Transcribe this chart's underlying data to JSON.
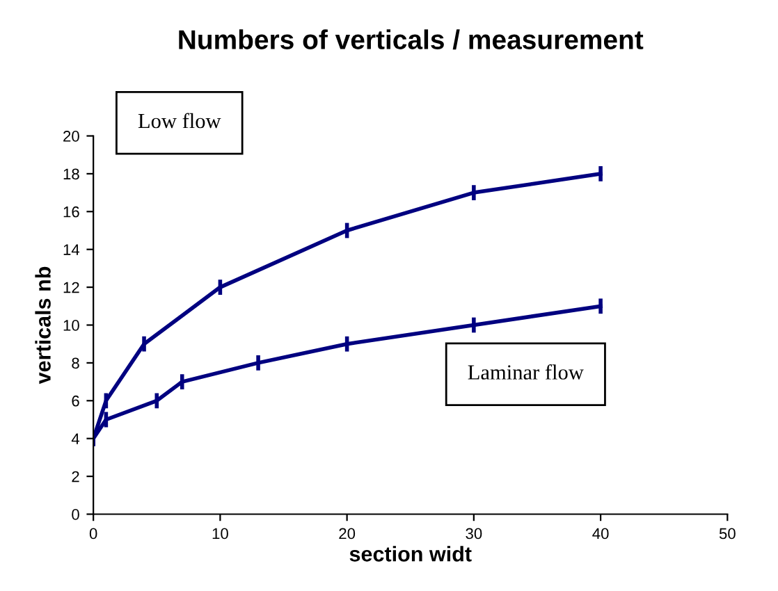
{
  "chart_data": {
    "type": "line",
    "title": "Numbers of verticals / measurement",
    "xlabel": "section widt",
    "ylabel": "verticals nb",
    "series": [
      {
        "color": "#000080",
        "x": [
          0,
          1,
          4,
          10,
          20,
          30,
          40
        ],
        "values": [
          4,
          6,
          9,
          12,
          15,
          17,
          18
        ],
        "errors": [
          0.4,
          0.4,
          0.4,
          0.4,
          0.4,
          0.4,
          0.4
        ]
      },
      {
        "color": "#000080",
        "x": [
          0,
          1,
          5,
          7,
          13,
          20,
          30,
          40
        ],
        "values": [
          4,
          5,
          6,
          7,
          8,
          9,
          10,
          11
        ],
        "errors": [
          0.4,
          0.4,
          0.4,
          0.4,
          0.4,
          0.4,
          0.4,
          0.4
        ]
      }
    ],
    "annotations": [
      "Low flow",
      "Laminar flow"
    ],
    "xlim": [
      0,
      50
    ],
    "xticks": [
      0,
      10,
      20,
      30,
      40,
      50
    ],
    "ylim": [
      0,
      20
    ],
    "yticks": [
      0,
      2,
      4,
      6,
      8,
      10,
      12,
      14,
      16,
      18,
      20
    ],
    "marker": "none",
    "line_style": "solid",
    "grid": false,
    "legend": false
  }
}
